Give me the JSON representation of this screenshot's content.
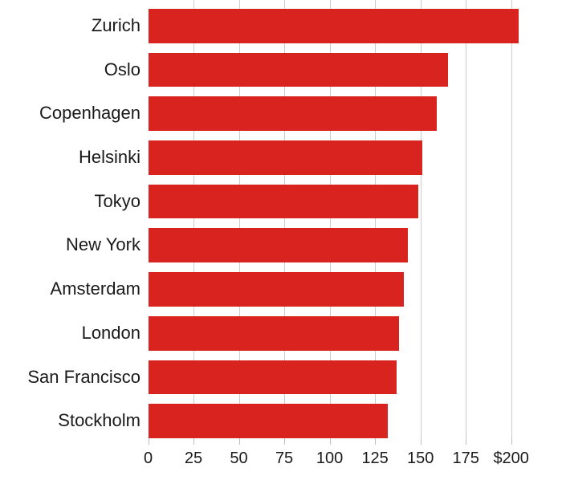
{
  "chart_data": {
    "type": "bar",
    "orientation": "horizontal",
    "title": "",
    "xlabel": "",
    "ylabel": "",
    "categories": [
      "Zurich",
      "Oslo",
      "Copenhagen",
      "Helsinki",
      "Tokyo",
      "New York",
      "Amsterdam",
      "London",
      "San Francisco",
      "Stockholm"
    ],
    "values": [
      204,
      165,
      159,
      151,
      149,
      143,
      141,
      138,
      137,
      132
    ],
    "xlim": [
      0,
      200
    ],
    "x_ticks": [
      0,
      25,
      50,
      75,
      100,
      125,
      150,
      175,
      200
    ],
    "x_tick_labels": [
      "0",
      "25",
      "50",
      "75",
      "100",
      "125",
      "150",
      "175",
      "$200"
    ],
    "grid": true,
    "legend": "none",
    "bar_color": "#d9231f",
    "gridline_color": "#cccccc",
    "tick_color": "#bfbfbf",
    "text_color": "#1a1a1a"
  }
}
